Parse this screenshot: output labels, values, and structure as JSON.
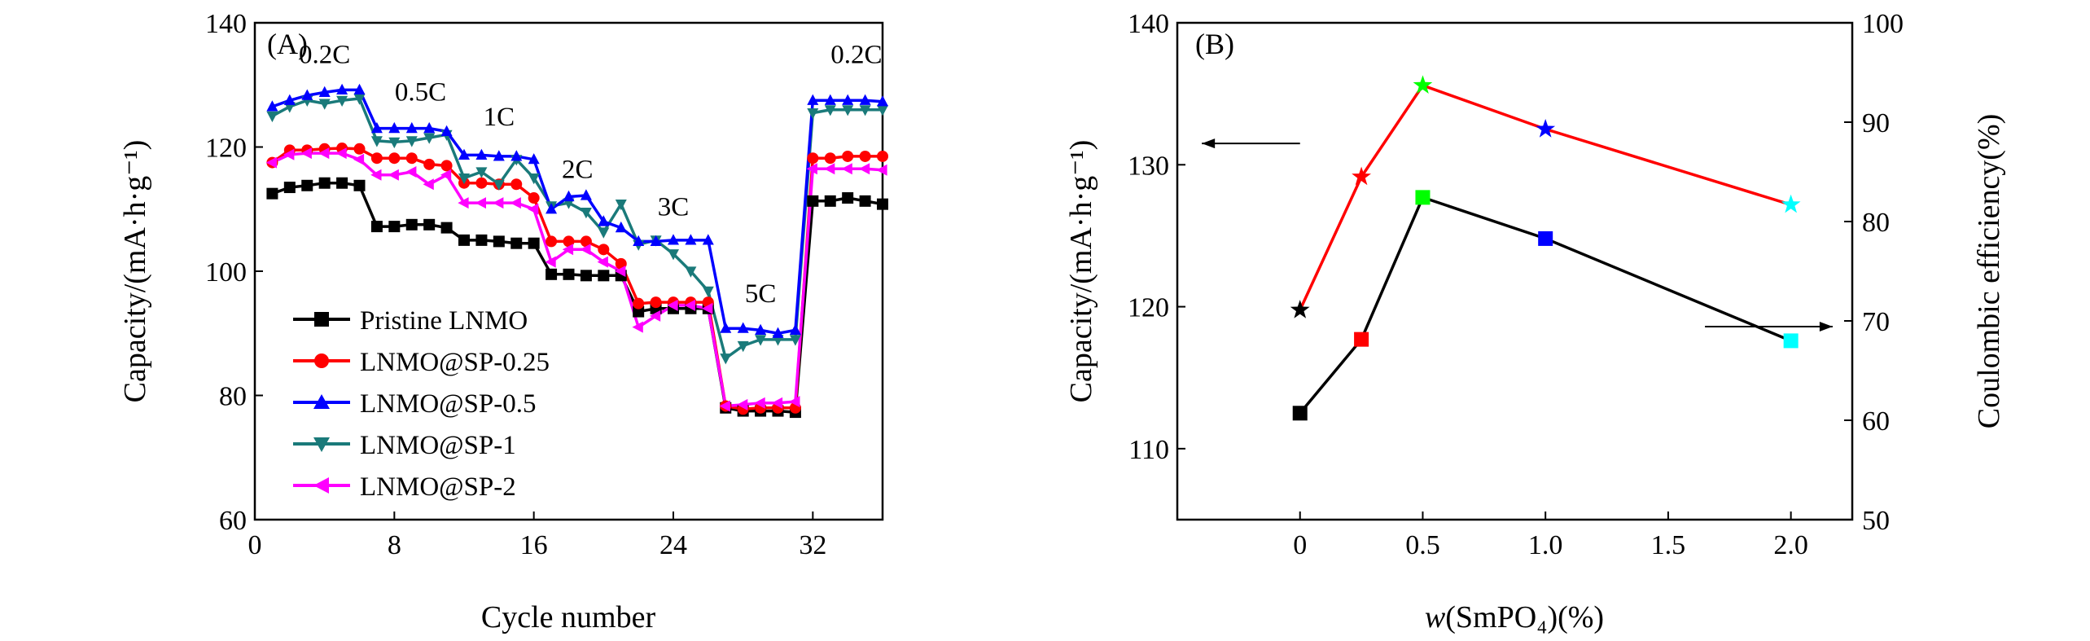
{
  "colors": {
    "pristine": "#000000",
    "sp025": "#ff0000",
    "sp05": "#0000ff",
    "sp1": "#1a7a7a",
    "sp2": "#ff00ff",
    "star0": "#000000",
    "star025": "#ff0000",
    "star05": "#00ff00",
    "star1": "#0000ff",
    "star2": "#00ffff",
    "sq0": "#000000",
    "sq025": "#ff0000",
    "sq05": "#00ff00",
    "sq1": "#0000ff",
    "sq2": "#00ffff",
    "redline": "#ff0000",
    "blackline": "#000000"
  },
  "chart_data": [
    {
      "type": "line",
      "panel_label": "(A)",
      "xlabel": "Cycle number",
      "ylabel": "Capacity/(mA·h·g⁻¹)",
      "xlim": [
        0,
        36
      ],
      "ylim": [
        60,
        140
      ],
      "x_ticks": [
        0,
        8,
        16,
        24,
        32
      ],
      "y_ticks": [
        60,
        80,
        100,
        120,
        140
      ],
      "rate_labels": [
        {
          "text": "0.2C",
          "x": 4,
          "y": 133.5
        },
        {
          "text": "0.5C",
          "x": 9.5,
          "y": 127.5
        },
        {
          "text": "1C",
          "x": 14,
          "y": 123.5
        },
        {
          "text": "2C",
          "x": 18.5,
          "y": 115
        },
        {
          "text": "3C",
          "x": 24,
          "y": 109
        },
        {
          "text": "5C",
          "x": 29,
          "y": 95
        },
        {
          "text": "0.2C",
          "x": 34.5,
          "y": 133.5
        }
      ],
      "x": [
        1,
        2,
        3,
        4,
        5,
        6,
        7,
        8,
        9,
        10,
        11,
        12,
        13,
        14,
        15,
        16,
        17,
        18,
        19,
        20,
        21,
        22,
        23,
        24,
        25,
        26,
        27,
        28,
        29,
        30,
        31,
        32,
        33,
        34,
        35,
        36
      ],
      "series": [
        {
          "name": "Pristine LNMO",
          "color_key": "pristine",
          "marker": "square",
          "values": [
            112.5,
            113.5,
            113.8,
            114.2,
            114.2,
            113.8,
            107.2,
            107.2,
            107.5,
            107.5,
            107,
            105,
            105,
            104.8,
            104.5,
            104.5,
            99.5,
            99.5,
            99.3,
            99.3,
            99.3,
            93.5,
            94,
            94,
            94,
            94,
            78,
            77.5,
            77.5,
            77.5,
            77.3,
            111.3,
            111.3,
            111.8,
            111.3,
            110.8
          ]
        },
        {
          "name": "LNMO@SP-0.25",
          "color_key": "sp025",
          "marker": "circle",
          "values": [
            117.5,
            119.5,
            119.5,
            119.7,
            119.8,
            119.7,
            118.2,
            118.2,
            118.2,
            117.2,
            117,
            114.2,
            114.2,
            114,
            114,
            111.8,
            104.8,
            104.8,
            104.8,
            103.5,
            101.2,
            94.8,
            95,
            95,
            95,
            95,
            78.3,
            77.8,
            78,
            78,
            78,
            118.2,
            118.2,
            118.5,
            118.5,
            118.5
          ]
        },
        {
          "name": "LNMO@SP-0.5",
          "color_key": "sp05",
          "marker": "triangle-up",
          "values": [
            126.5,
            127.5,
            128.3,
            128.8,
            129.2,
            129.2,
            123,
            123,
            123,
            123,
            122.5,
            118.7,
            118.7,
            118.5,
            118.5,
            118,
            110,
            112,
            112.2,
            108,
            107,
            104.8,
            104.8,
            105,
            105,
            105,
            90.8,
            90.8,
            90.5,
            90,
            90.5,
            127.5,
            127.5,
            127.5,
            127.5,
            127.3
          ]
        },
        {
          "name": "LNMO@SP-1",
          "color_key": "sp1",
          "marker": "triangle-down",
          "values": [
            125,
            126.5,
            127.5,
            127,
            127.5,
            127.8,
            121,
            120.8,
            121,
            121.5,
            122,
            115,
            116,
            114,
            118,
            115,
            110.5,
            111,
            109.5,
            106.3,
            110.8,
            104.3,
            105,
            102.8,
            100,
            96.8,
            86,
            88,
            89,
            89,
            89,
            125.5,
            126,
            126,
            126,
            126
          ]
        },
        {
          "name": "LNMO@SP-2",
          "color_key": "sp2",
          "marker": "triangle-left",
          "values": [
            117.5,
            118.8,
            119,
            119,
            119,
            118,
            115.5,
            115.5,
            116,
            114,
            115.5,
            111,
            111,
            111,
            111,
            110,
            101.5,
            103.5,
            103.5,
            101.5,
            100,
            91,
            92.8,
            94.5,
            94.5,
            94,
            78.3,
            78.5,
            78.8,
            78.8,
            79,
            116.5,
            116.5,
            116.5,
            116.5,
            116.3
          ]
        }
      ],
      "legend": {
        "placement": "lower-left"
      }
    },
    {
      "type": "line",
      "panel_label": "(B)",
      "xlabel_italic": "w",
      "xlabel_rest": "(SmPO₄)(%)",
      "ylabel_left": "Capacity/(mA·h·g⁻¹)",
      "ylabel_right": "Coulombic efficiency(%)",
      "x_positions": [
        0,
        0.25,
        0.5,
        1.0,
        2.0
      ],
      "xlim": [
        -0.5,
        2.25
      ],
      "x_ticks": [
        0,
        0.5,
        1.0,
        1.5,
        2.0
      ],
      "x_tick_labels": [
        "0",
        "0.5",
        "1.0",
        "1.5",
        "2.0"
      ],
      "ylim_left": [
        105,
        140
      ],
      "y_ticks_left": [
        110,
        120,
        130,
        140
      ],
      "ylim_right": [
        50,
        100
      ],
      "y_ticks_right": [
        50,
        60,
        70,
        80,
        90,
        100
      ],
      "series": [
        {
          "name": "Capacity",
          "axis": "left",
          "marker": "square",
          "line_color_key": "blackline",
          "values": [
            112.5,
            117.7,
            127.7,
            124.8,
            117.6
          ],
          "marker_color_keys": [
            "sq0",
            "sq025",
            "sq05",
            "sq1",
            "sq2"
          ]
        },
        {
          "name": "Coulombic efficiency",
          "axis": "right",
          "marker": "star",
          "line_color_key": "redline",
          "values": [
            71.1,
            84.5,
            93.7,
            89.3,
            81.7
          ],
          "marker_color_keys": [
            "star0",
            "star025",
            "star05",
            "star1",
            "star2"
          ]
        }
      ],
      "annotations": [
        {
          "type": "arrow",
          "direction": "left",
          "points_to": "left axis",
          "x_from": 0.0,
          "x_to": -0.4,
          "y_left": 131.5
        },
        {
          "type": "arrow",
          "direction": "right",
          "points_to": "right axis",
          "x_from": 1.65,
          "x_to": 2.17,
          "y_left": 118.6
        }
      ]
    }
  ]
}
